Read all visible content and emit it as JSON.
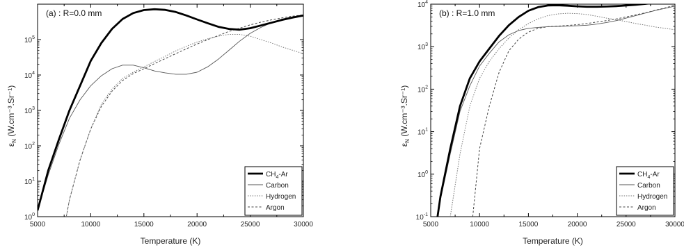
{
  "chart_data": [
    {
      "type": "line",
      "title": "(a) : R=0.0 mm",
      "xlabel": "Temperature (K)",
      "ylabel_main": "ε",
      "ylabel_sub": "N",
      "ylabel_unit": "(W.cm⁻³.Sr⁻¹)",
      "xlim": [
        5000,
        30000
      ],
      "ylim": [
        1,
        1000000
      ],
      "yscale": "log",
      "xticks": [
        "5000",
        "10000",
        "15000",
        "20000",
        "25000",
        "30000"
      ],
      "yticks": [
        {
          "base": "10",
          "exp": "0"
        },
        {
          "base": "10",
          "exp": "1"
        },
        {
          "base": "10",
          "exp": "2"
        },
        {
          "base": "10",
          "exp": "3"
        },
        {
          "base": "10",
          "exp": "4"
        },
        {
          "base": "10",
          "exp": "5"
        }
      ],
      "legend": {
        "position": "bottom-right"
      },
      "series": [
        {
          "name": "CH4-Ar",
          "legend_text": "CH",
          "legend_sub": "4",
          "legend_suffix": "-Ar",
          "style": "thick",
          "x": [
            5000,
            6000,
            7000,
            8000,
            9000,
            10000,
            11000,
            12000,
            13000,
            14000,
            15000,
            16000,
            17000,
            18000,
            19000,
            20000,
            21000,
            22000,
            23000,
            24000,
            25000,
            26000,
            27000,
            28000,
            29000,
            30000
          ],
          "y": [
            1.5,
            20,
            150,
            1000,
            5000,
            25000,
            80000,
            200000,
            380000,
            560000,
            680000,
            720000,
            690000,
            600000,
            480000,
            370000,
            290000,
            230000,
            200000,
            190000,
            210000,
            250000,
            300000,
            360000,
            420000,
            480000
          ]
        },
        {
          "name": "Carbon",
          "style": "thin",
          "x": [
            5000,
            6000,
            7000,
            8000,
            9000,
            10000,
            11000,
            12000,
            13000,
            14000,
            15000,
            16000,
            17000,
            18000,
            19000,
            20000,
            21000,
            22000,
            23000,
            24000,
            25000,
            26000,
            27000,
            28000,
            29000,
            30000
          ],
          "y": [
            1.5,
            15,
            110,
            600,
            2000,
            5000,
            9500,
            15000,
            19000,
            19000,
            16000,
            13000,
            11500,
            10500,
            10500,
            12000,
            17000,
            28000,
            50000,
            90000,
            150000,
            220000,
            300000,
            380000,
            440000,
            500000
          ]
        },
        {
          "name": "Hydrogen",
          "style": "dotted",
          "x": [
            7700,
            8000,
            9000,
            10000,
            11000,
            12000,
            13000,
            14000,
            15000,
            16000,
            17000,
            18000,
            19000,
            20000,
            21000,
            22000,
            23000,
            24000,
            25000,
            26000,
            27000,
            28000,
            29000,
            30000
          ],
          "y": [
            1,
            3,
            40,
            300,
            1500,
            4000,
            8000,
            12000,
            17000,
            24000,
            34000,
            48000,
            65000,
            85000,
            105000,
            125000,
            140000,
            140000,
            125000,
            100000,
            80000,
            62000,
            50000,
            40000
          ]
        },
        {
          "name": "Argon",
          "style": "dashed",
          "x": [
            7700,
            8000,
            9000,
            10000,
            11000,
            12000,
            13000,
            14000,
            15000,
            16000,
            17000,
            18000,
            19000,
            20000,
            21000,
            22000,
            23000,
            24000,
            25000,
            26000,
            27000,
            28000,
            29000,
            30000
          ],
          "y": [
            1,
            3,
            40,
            300,
            1300,
            3500,
            7000,
            11000,
            15000,
            21000,
            29000,
            40000,
            55000,
            75000,
            100000,
            130000,
            170000,
            210000,
            260000,
            310000,
            360000,
            410000,
            460000,
            500000
          ]
        }
      ]
    },
    {
      "type": "line",
      "title": "(b) : R=1.0 mm",
      "xlabel": "Temperature (K)",
      "ylabel_main": "ε",
      "ylabel_sub": "N",
      "ylabel_unit": "(W.cm⁻³.Sr⁻¹)",
      "xlim": [
        5000,
        30000
      ],
      "ylim": [
        0.1,
        10000
      ],
      "yscale": "log",
      "xticks": [
        "5000",
        "10000",
        "15000",
        "20000",
        "25000",
        "30000"
      ],
      "yticks": [
        {
          "base": "10",
          "exp": "-1"
        },
        {
          "base": "10",
          "exp": "0"
        },
        {
          "base": "10",
          "exp": "1"
        },
        {
          "base": "10",
          "exp": "2"
        },
        {
          "base": "10",
          "exp": "3"
        },
        {
          "base": "10",
          "exp": "4"
        }
      ],
      "legend": {
        "position": "bottom-right"
      },
      "series": [
        {
          "name": "CH4-Ar",
          "legend_text": "CH",
          "legend_sub": "4",
          "legend_suffix": "-Ar",
          "style": "thick",
          "x": [
            5700,
            6000,
            7000,
            8000,
            9000,
            10000,
            11000,
            12000,
            13000,
            14000,
            15000,
            16000,
            17000,
            18000,
            19000,
            20000,
            21000,
            22000,
            23000,
            24000,
            25000,
            26000,
            27000,
            28000,
            29000,
            30000
          ],
          "y": [
            0.1,
            0.3,
            4,
            40,
            180,
            450,
            900,
            1800,
            3200,
            5000,
            7000,
            8500,
            9300,
            9400,
            9200,
            8900,
            8700,
            8700,
            8800,
            9000,
            9300,
            9700,
            10200,
            10800,
            11500,
            12500
          ]
        },
        {
          "name": "Carbon",
          "style": "thin",
          "x": [
            5700,
            6000,
            7000,
            8000,
            9000,
            10000,
            11000,
            12000,
            13000,
            14000,
            15000,
            16000,
            17000,
            18000,
            19000,
            20000,
            21000,
            22000,
            23000,
            24000,
            25000,
            26000,
            27000,
            28000,
            29000,
            30000
          ],
          "y": [
            0.1,
            0.25,
            3,
            30,
            120,
            350,
            700,
            1300,
            1900,
            2400,
            2700,
            2850,
            2950,
            3000,
            3050,
            3100,
            3200,
            3400,
            3700,
            4100,
            4700,
            5400,
            6200,
            7100,
            8000,
            9000
          ]
        },
        {
          "name": "Hydrogen",
          "style": "dotted",
          "x": [
            7000,
            8000,
            9000,
            10000,
            11000,
            12000,
            13000,
            14000,
            15000,
            16000,
            17000,
            18000,
            19000,
            20000,
            21000,
            22000,
            23000,
            24000,
            25000,
            26000,
            27000,
            28000,
            29000,
            30000
          ],
          "y": [
            0.1,
            3,
            40,
            180,
            450,
            900,
            1600,
            2500,
            3500,
            4500,
            5400,
            5900,
            6100,
            6000,
            5700,
            5200,
            4700,
            4300,
            3900,
            3500,
            3200,
            2900,
            2700,
            2500
          ]
        },
        {
          "name": "Argon",
          "style": "dashed",
          "x": [
            9300,
            10000,
            11000,
            12000,
            13000,
            14000,
            15000,
            16000,
            17000,
            18000,
            19000,
            20000,
            21000,
            22000,
            23000,
            24000,
            25000,
            26000,
            27000,
            28000,
            29000,
            30000
          ],
          "y": [
            0.1,
            4,
            40,
            250,
            800,
            1500,
            2200,
            2700,
            2950,
            3050,
            3150,
            3300,
            3500,
            3800,
            4100,
            4500,
            5000,
            5600,
            6300,
            7200,
            8200,
            9500
          ]
        }
      ]
    }
  ]
}
